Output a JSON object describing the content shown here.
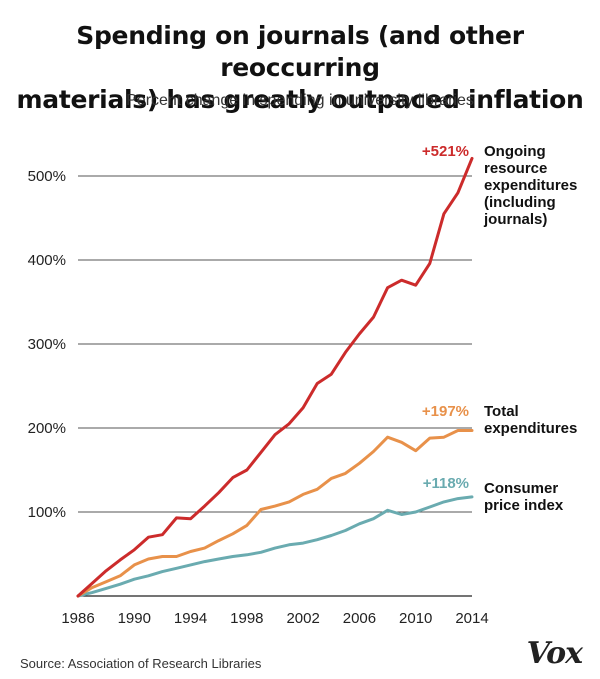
{
  "title_line1": "Spending on journals (and other reoccurring",
  "title_line2": "materials) has greatly outpaced inflation",
  "subtitle": "Percent change in spending in university libraries",
  "source": "Source: Association of Research Libraries",
  "logo": "Vox",
  "chart_data": {
    "type": "line",
    "title": "Spending on journals (and other reoccurring materials) has greatly outpaced inflation",
    "subtitle": "Percent change in spending in university libraries",
    "xlabel": "",
    "ylabel": "",
    "xlim": [
      1986,
      2014
    ],
    "ylim": [
      0,
      530
    ],
    "x_ticks": [
      1986,
      1990,
      1994,
      1998,
      2002,
      2006,
      2010,
      2014
    ],
    "y_ticks": [
      100,
      200,
      300,
      400,
      500
    ],
    "y_tick_labels": [
      "100%",
      "200%",
      "300%",
      "400%",
      "500%"
    ],
    "grid": "horizontal",
    "colors": {
      "ongoing": "#cc2b2b",
      "total": "#e8914a",
      "cpi": "#6aabb0"
    },
    "series": [
      {
        "name": "Ongoing resource expenditures (including journals)",
        "label_lines": [
          "Ongoing",
          "resource",
          "expenditures",
          "(including",
          "journals)"
        ],
        "end_label": "+521%",
        "color_key": "ongoing",
        "x": [
          1986,
          1987,
          1988,
          1989,
          1990,
          1991,
          1992,
          1993,
          1994,
          1995,
          1996,
          1997,
          1998,
          1999,
          2000,
          2001,
          2002,
          2003,
          2004,
          2005,
          2006,
          2007,
          2008,
          2009,
          2010,
          2011,
          2012,
          2013,
          2014
        ],
        "values": [
          0,
          15,
          30,
          43,
          55,
          70,
          73,
          93,
          92,
          107,
          123,
          141,
          150,
          171,
          192,
          205,
          224,
          253,
          264,
          290,
          312,
          332,
          367,
          376,
          370,
          396,
          455,
          480,
          521
        ]
      },
      {
        "name": "Total expenditures",
        "label_lines": [
          "Total",
          "expenditures"
        ],
        "end_label": "+197%",
        "color_key": "total",
        "x": [
          1986,
          1987,
          1988,
          1989,
          1990,
          1991,
          1992,
          1993,
          1994,
          1995,
          1996,
          1997,
          1998,
          1999,
          2000,
          2001,
          2002,
          2003,
          2004,
          2005,
          2006,
          2007,
          2008,
          2009,
          2010,
          2011,
          2012,
          2013,
          2014
        ],
        "values": [
          0,
          10,
          17,
          24,
          37,
          44,
          47,
          47,
          53,
          57,
          66,
          74,
          84,
          103,
          107,
          112,
          121,
          127,
          140,
          146,
          158,
          172,
          189,
          183,
          173,
          188,
          189,
          197,
          197
        ]
      },
      {
        "name": "Consumer price index",
        "label_lines": [
          "Consumer",
          "price index"
        ],
        "end_label": "+118%",
        "color_key": "cpi",
        "x": [
          1986,
          1987,
          1988,
          1989,
          1990,
          1991,
          1992,
          1993,
          1994,
          1995,
          1996,
          1997,
          1998,
          1999,
          2000,
          2001,
          2002,
          2003,
          2004,
          2005,
          2006,
          2007,
          2008,
          2009,
          2010,
          2011,
          2012,
          2013,
          2014
        ],
        "values": [
          0,
          4,
          9,
          14,
          20,
          24,
          29,
          33,
          37,
          41,
          44,
          47,
          49,
          52,
          57,
          61,
          63,
          67,
          72,
          78,
          86,
          92,
          102,
          97,
          100,
          106,
          112,
          116,
          118
        ]
      }
    ]
  }
}
